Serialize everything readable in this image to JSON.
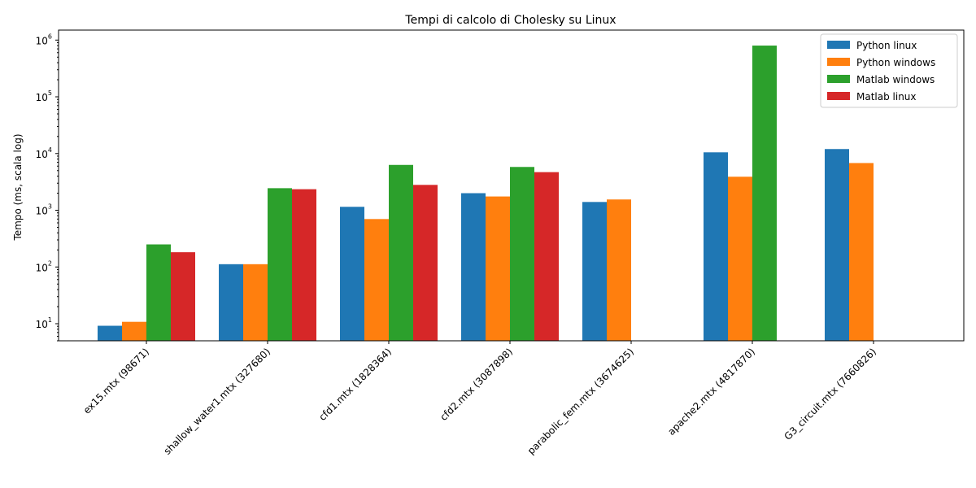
{
  "chart_data": {
    "type": "bar",
    "title": "Tempi di calcolo di Cholesky su Linux",
    "xlabel": "",
    "ylabel": "Tempo (ms, scala log)",
    "yscale": "log",
    "ylim": [
      5,
      1500000
    ],
    "grid": false,
    "legend_position": "top-right",
    "categories": [
      "ex15.mtx (98671)",
      "shallow_water1.mtx (327680)",
      "cfd1.mtx (1828364)",
      "cfd2.mtx (3087898)",
      "parabolic_fem.mtx (3674625)",
      "apache2.mtx (4817870)",
      "G3_circuit.mtx (7660826)"
    ],
    "series": [
      {
        "name": "Python linux",
        "color": "#1f77b4",
        "values": [
          9.2,
          112,
          1150,
          2000,
          1400,
          10500,
          12000
        ]
      },
      {
        "name": "Python windows",
        "color": "#ff7f0e",
        "values": [
          10.8,
          112,
          700,
          1750,
          1550,
          3900,
          6800
        ]
      },
      {
        "name": "Matlab windows",
        "color": "#2ca02c",
        "values": [
          250,
          2450,
          6300,
          5800,
          null,
          800000,
          null
        ]
      },
      {
        "name": "Matlab linux",
        "color": "#d62728",
        "values": [
          182,
          2350,
          2800,
          4700,
          null,
          null,
          null
        ]
      }
    ],
    "y_ticks": [
      {
        "base": "10",
        "exp": "1",
        "value": 10
      },
      {
        "base": "10",
        "exp": "2",
        "value": 100
      },
      {
        "base": "10",
        "exp": "3",
        "value": 1000
      },
      {
        "base": "10",
        "exp": "4",
        "value": 10000
      },
      {
        "base": "10",
        "exp": "5",
        "value": 100000
      },
      {
        "base": "10",
        "exp": "6",
        "value": 1000000
      }
    ]
  }
}
